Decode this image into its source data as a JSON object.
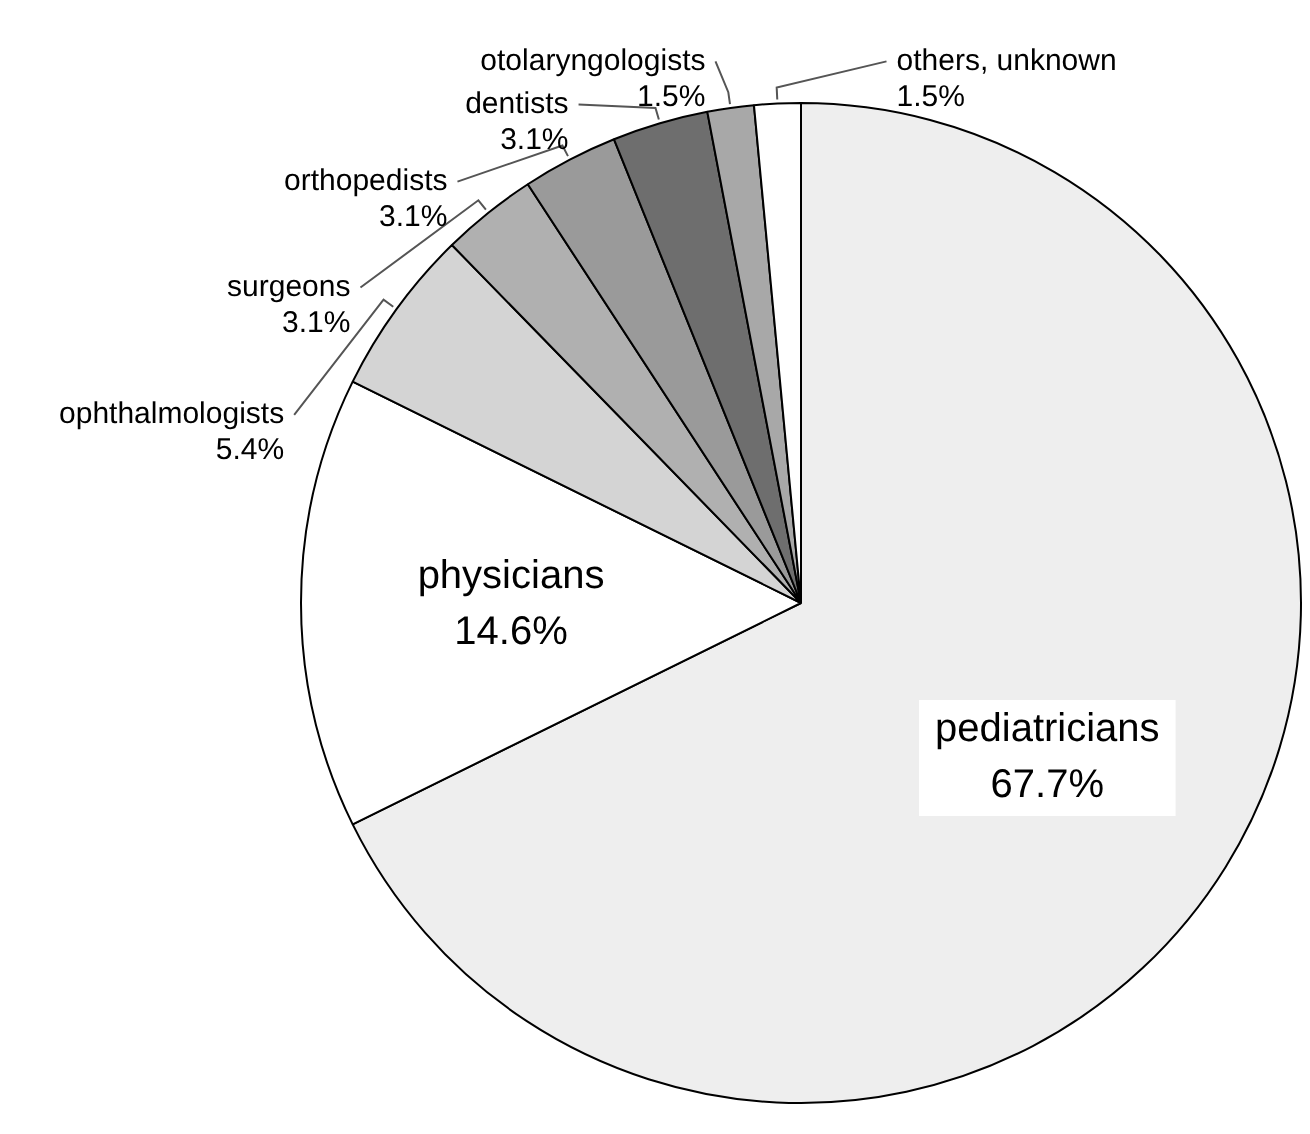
{
  "chart_data": {
    "type": "pie",
    "categories": [
      "pediatricians",
      "physicians",
      "ophthalmologists",
      "surgeons",
      "orthopedists",
      "dentists",
      "otolaryngologists",
      "others, unknown"
    ],
    "values": [
      67.7,
      14.6,
      5.4,
      3.1,
      3.1,
      3.1,
      1.5,
      1.5
    ],
    "value_labels": [
      "67.7%",
      "14.6%",
      "5.4%",
      "3.1%",
      "3.1%",
      "3.1%",
      "1.5%",
      "1.5%"
    ],
    "colors": [
      "#eeeeee",
      "#ffffff",
      "#d4d4d4",
      "#b0b0b0",
      "#9a9a9a",
      "#6e6e6e",
      "#a8a8a8",
      "#ffffff"
    ]
  }
}
